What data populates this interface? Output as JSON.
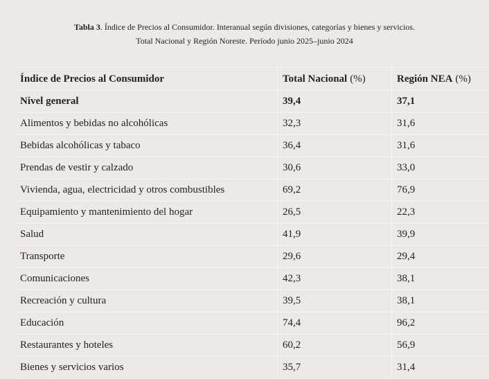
{
  "caption": {
    "label": "Tabla 3",
    "text": ". Índice de Precios al Consumidor. Interanual según divisiones, categorías y bienes y servicios.",
    "subtitle": "Total Nacional y Región Noreste. Período junio 2025–junio 2024"
  },
  "table": {
    "columns": [
      {
        "name": "Índice de Precios al Consumidor"
      },
      {
        "name": "Total Nacional",
        "unit": "(%)"
      },
      {
        "name": "Región NEA",
        "unit": "(%)"
      }
    ],
    "rows": [
      [
        "Nivel general",
        "39,4",
        "37,1"
      ],
      [
        "Alimentos y bebidas no alcohólicas",
        "32,3",
        "31,6"
      ],
      [
        "Bebidas alcohólicas y tabaco",
        "36,4",
        "31,6"
      ],
      [
        "Prendas de vestir y calzado",
        "30,6",
        "33,0"
      ],
      [
        "Vivienda, agua, electricidad y otros combustibles",
        "69,2",
        "76,9"
      ],
      [
        "Equipamiento y mantenimiento del hogar",
        "26,5",
        "22,3"
      ],
      [
        "Salud",
        "41,9",
        "39,9"
      ],
      [
        "Transporte",
        "29,6",
        "29,4"
      ],
      [
        "Comunicaciones",
        "42,3",
        "38,1"
      ],
      [
        "Recreación y cultura",
        "39,5",
        "38,1"
      ],
      [
        "Educación",
        "74,4",
        "96,2"
      ],
      [
        "Restaurantes y hoteles",
        "60,2",
        "56,9"
      ],
      [
        "Bienes y servicios varios",
        "35,7",
        "31,4"
      ]
    ]
  }
}
